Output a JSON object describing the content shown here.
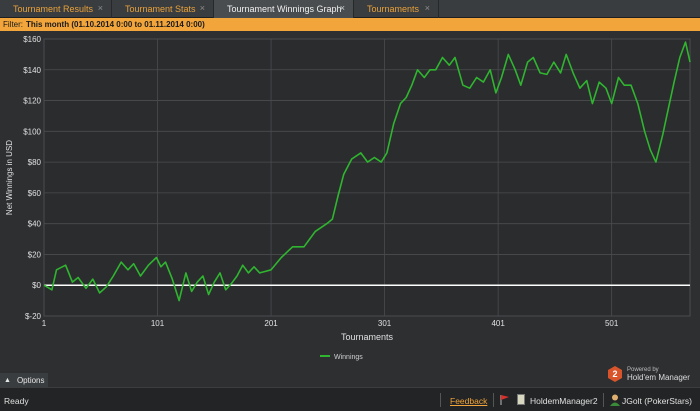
{
  "tabs": [
    {
      "label": "Tournament Results",
      "active": false
    },
    {
      "label": "Tournament Stats",
      "active": false
    },
    {
      "label": "Tournament Winnings Graph",
      "active": true
    },
    {
      "label": "Tournaments",
      "active": false
    }
  ],
  "tab_close_glyph": "×",
  "filter": {
    "prefix": "Filter:",
    "value": "This month (01.10.2014 0:00 to 01.11.2014 0:00)"
  },
  "chart_data": {
    "type": "line",
    "xlabel": "Tournaments",
    "ylabel": "Net Winnings in USD",
    "xlim": [
      1,
      570
    ],
    "ylim": [
      -20,
      160
    ],
    "x_ticks": [
      1,
      101,
      201,
      301,
      401,
      501
    ],
    "y_ticks": [
      -20,
      0,
      20,
      40,
      60,
      80,
      100,
      120,
      140,
      160
    ],
    "y_tick_labels": [
      "$-20",
      "$0",
      "$20",
      "$40",
      "$60",
      "$80",
      "$100",
      "$120",
      "$140",
      "$160"
    ],
    "grid": true,
    "legend_position": "bottom-center",
    "zero_line": true,
    "series": [
      {
        "name": "Winnings",
        "color": "#2fb52f",
        "x": [
          1,
          8,
          12,
          20,
          26,
          31,
          38,
          44,
          50,
          56,
          62,
          69,
          75,
          80,
          86,
          93,
          100,
          104,
          108,
          114,
          120,
          126,
          131,
          136,
          141,
          146,
          151,
          156,
          161,
          166,
          171,
          176,
          181,
          186,
          191,
          196,
          201,
          210,
          220,
          230,
          240,
          250,
          255,
          260,
          265,
          272,
          280,
          286,
          292,
          298,
          303,
          309,
          315,
          320,
          325,
          330,
          336,
          341,
          346,
          352,
          358,
          363,
          370,
          376,
          382,
          388,
          394,
          399,
          404,
          410,
          416,
          421,
          427,
          432,
          438,
          444,
          450,
          456,
          461,
          467,
          473,
          479,
          484,
          490,
          496,
          501,
          507,
          512,
          518,
          524,
          530,
          535,
          540,
          546,
          551,
          556,
          561,
          566,
          570
        ],
        "y": [
          0,
          -3,
          10,
          13,
          2,
          5,
          -2,
          4,
          -5,
          -1,
          6,
          15,
          10,
          14,
          6,
          13,
          18,
          12,
          15,
          4,
          -10,
          8,
          -4,
          2,
          6,
          -6,
          2,
          8,
          -3,
          1,
          6,
          13,
          8,
          12,
          8,
          9,
          10,
          18,
          25,
          25,
          35,
          40,
          43,
          58,
          72,
          82,
          86,
          80,
          83,
          80,
          86,
          105,
          118,
          122,
          130,
          140,
          135,
          140,
          140,
          148,
          143,
          148,
          130,
          128,
          135,
          132,
          140,
          125,
          135,
          150,
          140,
          130,
          145,
          148,
          138,
          137,
          145,
          138,
          150,
          138,
          128,
          133,
          118,
          132,
          128,
          118,
          135,
          130,
          130,
          118,
          100,
          88,
          80,
          98,
          115,
          132,
          148,
          158,
          145
        ]
      }
    ]
  },
  "options_label": "Options",
  "powered": {
    "badge": "2",
    "line1": "Powered by",
    "line2": "Hold'em Manager"
  },
  "status": {
    "ready": "Ready",
    "feedback": "Feedback",
    "database": "HoldemManager2",
    "player": "JGolt (PokerStars)"
  }
}
